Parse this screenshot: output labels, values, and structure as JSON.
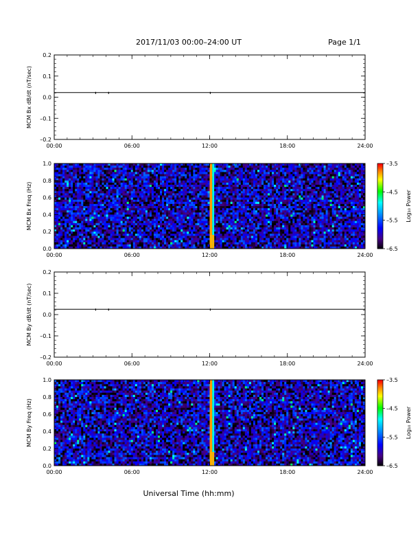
{
  "header": {
    "title": "2017/11/03  00:00–24:00 UT",
    "page": "Page 1/1"
  },
  "footer": {
    "xlabel": "Universal Time (hh:mm)"
  },
  "chart_data": [
    {
      "type": "line",
      "ylabel": "MCM Bx dB/dt (nT/sec)",
      "ylim": [
        -0.2,
        0.2
      ],
      "yticks": [
        "0.2",
        "0.1",
        "0.0",
        "–0.1",
        "–0.2"
      ],
      "ytick_values": [
        0.2,
        0.1,
        0.0,
        -0.1,
        -0.2
      ],
      "xlim": [
        0,
        24
      ],
      "xtick_labels": [
        "00:00",
        "06:00",
        "12:00",
        "18:00",
        "24:00"
      ],
      "xtick_values": [
        0,
        6,
        12,
        18,
        24
      ],
      "baseline": 0.022,
      "spikes": [
        {
          "x": 3.2,
          "y": 0.015
        },
        {
          "x": 4.2,
          "y": 0.018
        },
        {
          "x": 12.05,
          "y": 0.012
        }
      ]
    },
    {
      "type": "heatmap",
      "ylabel": "MCM Bx Freq (Hz)",
      "ylim": [
        0.0,
        1.0
      ],
      "yticks": [
        "1.0",
        "0.8",
        "0.6",
        "0.4",
        "0.2",
        "0.0"
      ],
      "ytick_values": [
        1.0,
        0.8,
        0.6,
        0.4,
        0.2,
        0.0
      ],
      "xlim": [
        0,
        24
      ],
      "xtick_labels": [
        "00:00",
        "06:00",
        "12:00",
        "18:00",
        "24:00"
      ],
      "xtick_values": [
        0,
        6,
        12,
        18,
        24
      ],
      "colorbar": {
        "label": "Log₁₀ Power",
        "ticks": [
          "–3.5",
          "–4.5",
          "–5.5",
          "–6.5"
        ],
        "tick_values": [
          -3.5,
          -4.5,
          -5.5,
          -6.5
        ],
        "range": [
          -6.5,
          -3.5
        ]
      },
      "features": [
        {
          "x": 12.0,
          "width": 0.2,
          "level": -3.8
        },
        {
          "x": 12.2,
          "width": 0.15,
          "level": -4.8
        }
      ],
      "background_level": -6.0
    },
    {
      "type": "line",
      "ylabel": "MCM By dB/dt (nT/sec)",
      "ylim": [
        -0.2,
        0.2
      ],
      "yticks": [
        "0.2",
        "0.1",
        "0.0",
        "–0.1",
        "–0.2"
      ],
      "ytick_values": [
        0.2,
        0.1,
        0.0,
        -0.1,
        -0.2
      ],
      "xlim": [
        0,
        24
      ],
      "xtick_labels": [
        "00:00",
        "06:00",
        "12:00",
        "18:00",
        "24:00"
      ],
      "xtick_values": [
        0,
        6,
        12,
        18,
        24
      ],
      "baseline": 0.025,
      "spikes": [
        {
          "x": 3.2,
          "y": 0.02
        },
        {
          "x": 4.2,
          "y": 0.02
        },
        {
          "x": 12.05,
          "y": 0.01
        }
      ]
    },
    {
      "type": "heatmap",
      "ylabel": "MCM By Freq (Hz)",
      "ylim": [
        0.0,
        1.0
      ],
      "yticks": [
        "1.0",
        "0.8",
        "0.6",
        "0.4",
        "0.2",
        "0.0"
      ],
      "ytick_values": [
        1.0,
        0.8,
        0.6,
        0.4,
        0.2,
        0.0
      ],
      "xlim": [
        0,
        24
      ],
      "xtick_labels": [
        "00:00",
        "06:00",
        "12:00",
        "18:00",
        "24:00"
      ],
      "xtick_values": [
        0,
        6,
        12,
        18,
        24
      ],
      "colorbar": {
        "label": "Log₁₀ Power",
        "ticks": [
          "–3.5",
          "–4.5",
          "–5.5",
          "–6.5"
        ],
        "tick_values": [
          -3.5,
          -4.5,
          -5.5,
          -6.5
        ],
        "range": [
          -6.5,
          -3.5
        ]
      },
      "features": [
        {
          "x": 12.0,
          "width": 0.2,
          "level": -3.8
        },
        {
          "x": 12.2,
          "width": 0.15,
          "level": -4.8
        }
      ],
      "background_level": -6.0
    }
  ]
}
